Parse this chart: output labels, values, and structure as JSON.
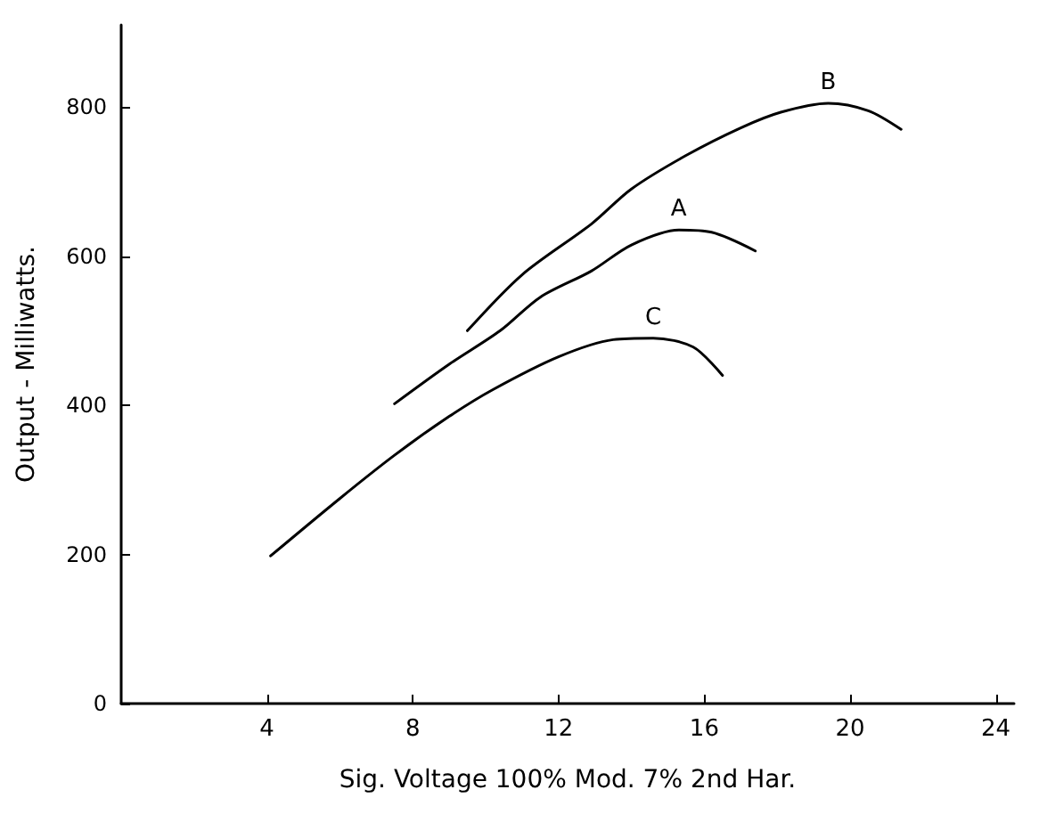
{
  "chart_data": {
    "type": "line",
    "xlabel": "Sig. Voltage 100% Mod. 7% 2nd Har.",
    "ylabel": "Output - Milliwatts.",
    "xlim": [
      0,
      24.5
    ],
    "xticks": [
      4,
      8,
      12,
      16,
      20,
      24
    ],
    "ylim": [
      0,
      910
    ],
    "yticks": [
      0,
      200,
      400,
      600,
      800
    ],
    "grid": false,
    "legend": false,
    "marker": "none",
    "line_style": "solid",
    "series": [
      {
        "name": "B",
        "color": "#000000",
        "x": [
          9.5,
          11,
          12.9,
          14,
          15.5,
          17,
          18.1,
          19.4,
          20.5,
          21.4
        ],
        "values": [
          500,
          575,
          643,
          690,
          735,
          772,
          793,
          805,
          795,
          770
        ]
      },
      {
        "name": "A",
        "color": "#000000",
        "x": [
          7.5,
          9,
          10.4,
          11.5,
          12.9,
          14,
          15.3,
          16.2,
          17.4
        ],
        "values": [
          402,
          455,
          500,
          545,
          580,
          615,
          635,
          632,
          607
        ]
      },
      {
        "name": "C",
        "color": "#000000",
        "x": [
          4.1,
          6,
          7.5,
          9,
          10.2,
          12,
          13.5,
          14.6,
          15.7,
          16.5
        ],
        "values": [
          198,
          275,
          333,
          385,
          421,
          465,
          488,
          490,
          478,
          440
        ]
      }
    ]
  }
}
